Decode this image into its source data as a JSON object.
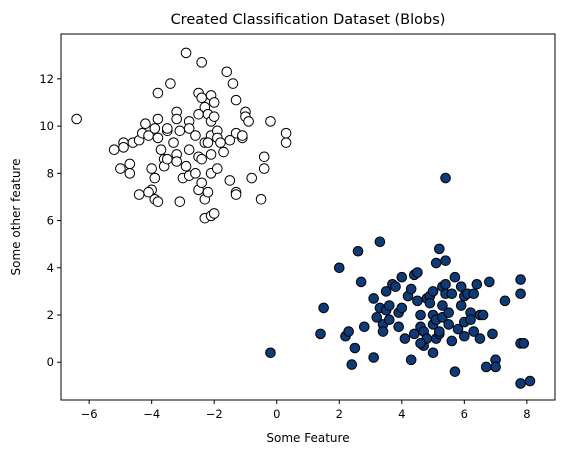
{
  "chart_data": {
    "type": "scatter",
    "title": "Created Classification Dataset (Blobs)",
    "xlabel": "Some Feature",
    "ylabel": "Some other feature",
    "xlim": [
      -6.9,
      8.9
    ],
    "ylim": [
      -1.6,
      13.9
    ],
    "xticks": [
      -6,
      -4,
      -2,
      0,
      2,
      4,
      6,
      8
    ],
    "yticks": [
      0,
      2,
      4,
      6,
      8,
      10,
      12
    ],
    "grid": false,
    "legend": "none",
    "series": [
      {
        "color": "#ffffff",
        "points": [
          [
            -6.4,
            10.3
          ],
          [
            -5.2,
            9.0
          ],
          [
            -4.9,
            9.3
          ],
          [
            -4.9,
            9.1
          ],
          [
            -4.6,
            9.3
          ],
          [
            -4.4,
            9.4
          ],
          [
            -5.0,
            8.2
          ],
          [
            -4.7,
            8.4
          ],
          [
            -4.7,
            8.0
          ],
          [
            -4.3,
            9.7
          ],
          [
            -4.2,
            10.1
          ],
          [
            -4.1,
            9.6
          ],
          [
            -3.9,
            9.9
          ],
          [
            -3.8,
            11.4
          ],
          [
            -3.8,
            10.3
          ],
          [
            -3.8,
            9.5
          ],
          [
            -3.7,
            9.0
          ],
          [
            -3.6,
            8.6
          ],
          [
            -4.0,
            8.2
          ],
          [
            -3.9,
            7.8
          ],
          [
            -4.0,
            7.3
          ],
          [
            -4.1,
            7.2
          ],
          [
            -4.4,
            7.1
          ],
          [
            -3.9,
            6.9
          ],
          [
            -3.8,
            6.8
          ],
          [
            -3.6,
            8.3
          ],
          [
            -3.5,
            8.6
          ],
          [
            -3.5,
            9.8
          ],
          [
            -3.4,
            11.8
          ],
          [
            -3.3,
            9.3
          ],
          [
            -3.2,
            10.6
          ],
          [
            -3.2,
            10.3
          ],
          [
            -3.1,
            9.8
          ],
          [
            -3.2,
            8.8
          ],
          [
            -3.2,
            8.5
          ],
          [
            -3.0,
            7.8
          ],
          [
            -3.1,
            6.8
          ],
          [
            -2.9,
            13.1
          ],
          [
            -2.8,
            10.2
          ],
          [
            -2.8,
            9.9
          ],
          [
            -2.8,
            9.0
          ],
          [
            -2.9,
            8.3
          ],
          [
            -2.8,
            7.9
          ],
          [
            -2.6,
            9.6
          ],
          [
            -2.5,
            11.4
          ],
          [
            -2.5,
            10.5
          ],
          [
            -2.5,
            8.7
          ],
          [
            -2.5,
            7.3
          ],
          [
            -2.4,
            12.7
          ],
          [
            -2.4,
            11.2
          ],
          [
            -2.3,
            10.8
          ],
          [
            -2.3,
            9.3
          ],
          [
            -2.4,
            8.6
          ],
          [
            -2.4,
            7.6
          ],
          [
            -2.3,
            6.9
          ],
          [
            -2.3,
            6.1
          ],
          [
            -2.2,
            10.5
          ],
          [
            -2.1,
            11.3
          ],
          [
            -2.1,
            10.2
          ],
          [
            -2.1,
            9.6
          ],
          [
            -2.1,
            8.8
          ],
          [
            -2.1,
            8.0
          ],
          [
            -2.2,
            7.2
          ],
          [
            -2.1,
            6.2
          ],
          [
            -2.0,
            11.0
          ],
          [
            -2.0,
            10.4
          ],
          [
            -1.9,
            9.8
          ],
          [
            -1.9,
            9.5
          ],
          [
            -1.9,
            8.2
          ],
          [
            -2.0,
            6.3
          ],
          [
            -1.8,
            9.3
          ],
          [
            -1.7,
            8.9
          ],
          [
            -1.6,
            12.3
          ],
          [
            -1.5,
            7.7
          ],
          [
            -1.4,
            11.8
          ],
          [
            -1.3,
            11.1
          ],
          [
            -1.3,
            9.7
          ],
          [
            -1.3,
            7.2
          ],
          [
            -1.3,
            7.1
          ],
          [
            -1.1,
            9.5
          ],
          [
            -1.1,
            9.6
          ],
          [
            -1.0,
            10.6
          ],
          [
            -1.0,
            10.4
          ],
          [
            -0.9,
            10.2
          ],
          [
            -0.8,
            7.8
          ],
          [
            -0.5,
            6.9
          ],
          [
            -0.4,
            8.7
          ],
          [
            -0.4,
            8.2
          ],
          [
            -0.2,
            10.2
          ],
          [
            0.3,
            9.7
          ],
          [
            0.3,
            9.3
          ],
          [
            -2.6,
            8.0
          ],
          [
            -3.5,
            9.9
          ],
          [
            -2.2,
            9.3
          ],
          [
            -1.5,
            9.4
          ]
        ]
      },
      {
        "color": "#0f3a78",
        "points": [
          [
            -0.2,
            0.4
          ],
          [
            1.4,
            1.2
          ],
          [
            1.5,
            2.3
          ],
          [
            2.0,
            4.0
          ],
          [
            2.2,
            1.1
          ],
          [
            2.3,
            1.3
          ],
          [
            2.4,
            -0.1
          ],
          [
            2.5,
            0.6
          ],
          [
            2.6,
            4.7
          ],
          [
            2.7,
            3.4
          ],
          [
            2.8,
            1.5
          ],
          [
            3.1,
            0.2
          ],
          [
            3.1,
            2.7
          ],
          [
            3.2,
            1.9
          ],
          [
            3.3,
            5.1
          ],
          [
            3.3,
            2.3
          ],
          [
            3.4,
            1.6
          ],
          [
            3.4,
            1.3
          ],
          [
            3.5,
            3.0
          ],
          [
            3.5,
            2.2
          ],
          [
            3.6,
            1.8
          ],
          [
            3.7,
            3.3
          ],
          [
            3.8,
            3.2
          ],
          [
            3.9,
            2.1
          ],
          [
            3.9,
            1.5
          ],
          [
            4.0,
            3.6
          ],
          [
            4.0,
            2.3
          ],
          [
            4.1,
            1.0
          ],
          [
            4.2,
            2.8
          ],
          [
            4.3,
            3.1
          ],
          [
            4.3,
            0.1
          ],
          [
            4.4,
            3.7
          ],
          [
            4.4,
            1.2
          ],
          [
            4.5,
            3.8
          ],
          [
            4.5,
            2.6
          ],
          [
            4.6,
            2.0
          ],
          [
            4.6,
            1.5
          ],
          [
            4.7,
            1.3
          ],
          [
            4.7,
            0.7
          ],
          [
            4.8,
            2.7
          ],
          [
            4.8,
            1.0
          ],
          [
            4.9,
            2.8
          ],
          [
            4.9,
            2.5
          ],
          [
            5.0,
            3.0
          ],
          [
            5.0,
            2.0
          ],
          [
            5.0,
            1.6
          ],
          [
            5.0,
            0.4
          ],
          [
            5.1,
            4.2
          ],
          [
            5.1,
            1.8
          ],
          [
            5.1,
            1.0
          ],
          [
            5.2,
            4.8
          ],
          [
            5.2,
            1.2
          ],
          [
            5.3,
            3.2
          ],
          [
            5.3,
            2.4
          ],
          [
            5.3,
            1.9
          ],
          [
            5.4,
            7.8
          ],
          [
            5.4,
            4.3
          ],
          [
            5.4,
            3.3
          ],
          [
            5.4,
            2.9
          ],
          [
            5.5,
            2.1
          ],
          [
            5.5,
            1.6
          ],
          [
            5.6,
            2.9
          ],
          [
            5.6,
            0.9
          ],
          [
            5.7,
            3.6
          ],
          [
            5.7,
            -0.4
          ],
          [
            5.8,
            1.4
          ],
          [
            5.9,
            3.2
          ],
          [
            5.9,
            2.4
          ],
          [
            6.0,
            2.8
          ],
          [
            6.0,
            1.7
          ],
          [
            6.0,
            1.1
          ],
          [
            6.1,
            2.9
          ],
          [
            6.2,
            2.1
          ],
          [
            6.2,
            1.8
          ],
          [
            6.3,
            2.9
          ],
          [
            6.3,
            1.3
          ],
          [
            6.4,
            3.3
          ],
          [
            6.5,
            2.0
          ],
          [
            6.5,
            1.0
          ],
          [
            6.6,
            2.0
          ],
          [
            6.7,
            -0.2
          ],
          [
            6.8,
            3.4
          ],
          [
            6.9,
            1.2
          ],
          [
            7.0,
            0.1
          ],
          [
            7.0,
            -0.2
          ],
          [
            7.3,
            2.6
          ],
          [
            7.8,
            3.5
          ],
          [
            7.8,
            2.9
          ],
          [
            7.8,
            0.8
          ],
          [
            7.8,
            -0.9
          ],
          [
            7.9,
            0.8
          ],
          [
            8.1,
            -0.8
          ],
          [
            4.6,
            0.8
          ],
          [
            5.2,
            1.3
          ],
          [
            3.6,
            2.4
          ]
        ]
      }
    ]
  }
}
